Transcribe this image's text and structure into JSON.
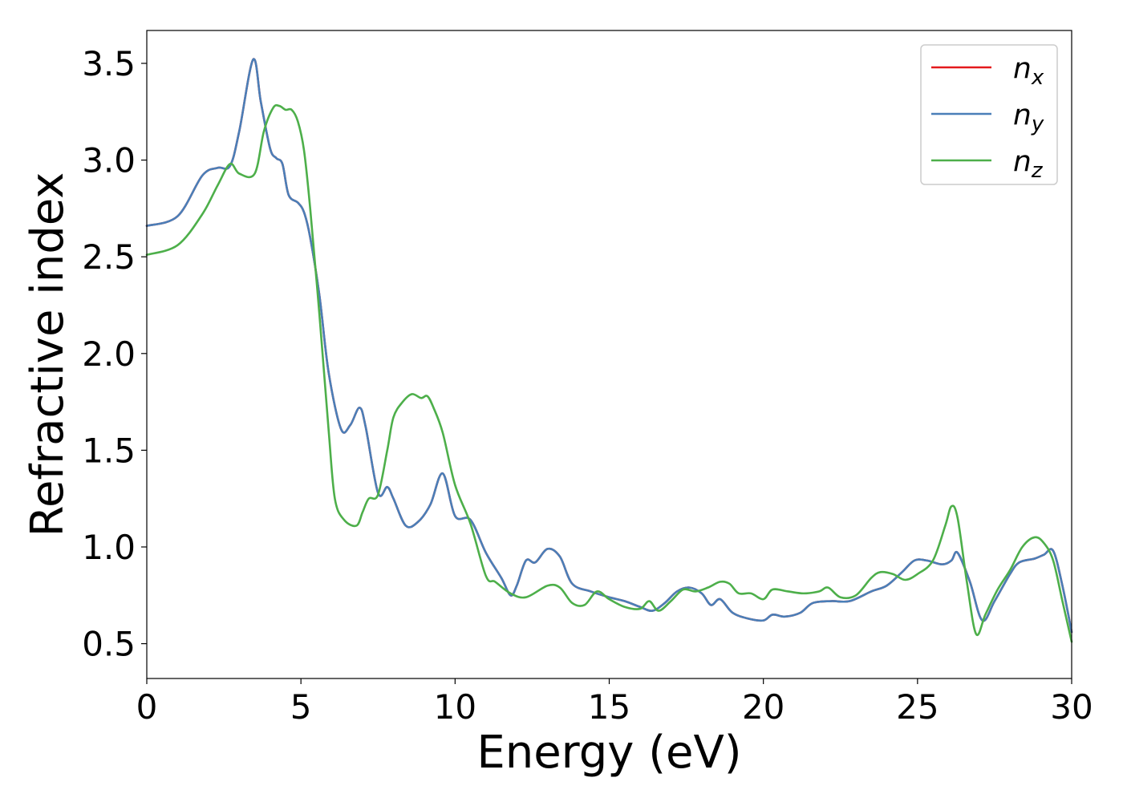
{
  "chart_data": {
    "type": "line",
    "title": "",
    "xlabel": "Energy (eV)",
    "ylabel": "Refractive index",
    "xlim": [
      0,
      30
    ],
    "ylim": [
      0.32,
      3.67
    ],
    "xticks": [
      0,
      5,
      10,
      15,
      20,
      25,
      30
    ],
    "yticks": [
      0.5,
      1.0,
      1.5,
      2.0,
      2.5,
      3.0,
      3.5
    ],
    "xtick_labels": [
      "0",
      "5",
      "10",
      "15",
      "20",
      "25",
      "30"
    ],
    "ytick_labels": [
      "0.5",
      "1.0",
      "1.5",
      "2.0",
      "2.5",
      "3.0",
      "3.5"
    ],
    "grid": false,
    "legend_position": "top-right",
    "series": [
      {
        "name": "n",
        "subscript": "x",
        "color": "#e41a1c",
        "x": [
          0,
          1.0,
          1.8,
          2.3,
          2.7,
          3.0,
          3.45,
          3.7,
          4.0,
          4.2,
          4.4,
          4.6,
          4.9,
          5.1,
          5.3,
          5.6,
          5.9,
          6.3,
          6.6,
          6.9,
          7.1,
          7.5,
          7.8,
          8.0,
          8.4,
          8.8,
          9.2,
          9.6,
          10.0,
          10.5,
          11.0,
          11.5,
          11.8,
          12.0,
          12.3,
          12.6,
          13.0,
          13.4,
          13.8,
          14.4,
          15.0,
          15.5,
          16.0,
          16.4,
          16.8,
          17.2,
          17.6,
          18.0,
          18.3,
          18.6,
          19.0,
          19.5,
          20.0,
          20.3,
          20.7,
          21.2,
          21.6,
          22.2,
          22.8,
          23.5,
          24.0,
          24.5,
          24.9,
          25.3,
          25.8,
          26.1,
          26.3,
          26.7,
          27.1,
          27.5,
          28.0,
          28.3,
          28.8,
          29.1,
          29.4,
          29.7,
          30.0
        ],
        "y": [
          2.66,
          2.71,
          2.92,
          2.96,
          2.97,
          3.15,
          3.52,
          3.3,
          3.06,
          3.01,
          2.98,
          2.82,
          2.78,
          2.73,
          2.6,
          2.3,
          1.9,
          1.61,
          1.63,
          1.72,
          1.62,
          1.28,
          1.31,
          1.25,
          1.11,
          1.13,
          1.22,
          1.38,
          1.16,
          1.14,
          0.97,
          0.84,
          0.75,
          0.8,
          0.93,
          0.92,
          0.99,
          0.95,
          0.81,
          0.77,
          0.74,
          0.72,
          0.69,
          0.67,
          0.71,
          0.77,
          0.79,
          0.76,
          0.7,
          0.73,
          0.66,
          0.63,
          0.62,
          0.65,
          0.64,
          0.66,
          0.71,
          0.72,
          0.72,
          0.77,
          0.8,
          0.87,
          0.93,
          0.93,
          0.91,
          0.93,
          0.97,
          0.82,
          0.62,
          0.72,
          0.86,
          0.92,
          0.94,
          0.96,
          0.98,
          0.8,
          0.56
        ]
      },
      {
        "name": "n",
        "subscript": "y",
        "color": "#4a7fb8",
        "x": [
          0,
          1.0,
          1.8,
          2.3,
          2.7,
          3.0,
          3.45,
          3.7,
          4.0,
          4.2,
          4.4,
          4.6,
          4.9,
          5.1,
          5.3,
          5.6,
          5.9,
          6.3,
          6.6,
          6.9,
          7.1,
          7.5,
          7.8,
          8.0,
          8.4,
          8.8,
          9.2,
          9.6,
          10.0,
          10.5,
          11.0,
          11.5,
          11.8,
          12.0,
          12.3,
          12.6,
          13.0,
          13.4,
          13.8,
          14.4,
          15.0,
          15.5,
          16.0,
          16.4,
          16.8,
          17.2,
          17.6,
          18.0,
          18.3,
          18.6,
          19.0,
          19.5,
          20.0,
          20.3,
          20.7,
          21.2,
          21.6,
          22.2,
          22.8,
          23.5,
          24.0,
          24.5,
          24.9,
          25.3,
          25.8,
          26.1,
          26.3,
          26.7,
          27.1,
          27.5,
          28.0,
          28.3,
          28.8,
          29.1,
          29.4,
          29.7,
          30.0
        ],
        "y": [
          2.66,
          2.71,
          2.92,
          2.96,
          2.97,
          3.15,
          3.52,
          3.3,
          3.06,
          3.01,
          2.98,
          2.82,
          2.78,
          2.73,
          2.6,
          2.3,
          1.9,
          1.61,
          1.63,
          1.72,
          1.62,
          1.28,
          1.31,
          1.25,
          1.11,
          1.13,
          1.22,
          1.38,
          1.16,
          1.14,
          0.97,
          0.84,
          0.75,
          0.8,
          0.93,
          0.92,
          0.99,
          0.95,
          0.81,
          0.77,
          0.74,
          0.72,
          0.69,
          0.67,
          0.71,
          0.77,
          0.79,
          0.76,
          0.7,
          0.73,
          0.66,
          0.63,
          0.62,
          0.65,
          0.64,
          0.66,
          0.71,
          0.72,
          0.72,
          0.77,
          0.8,
          0.87,
          0.93,
          0.93,
          0.91,
          0.93,
          0.97,
          0.82,
          0.62,
          0.72,
          0.86,
          0.92,
          0.94,
          0.96,
          0.98,
          0.8,
          0.56
        ]
      },
      {
        "name": "n",
        "subscript": "z",
        "color": "#4daf4a",
        "x": [
          0,
          1.0,
          1.8,
          2.3,
          2.7,
          3.0,
          3.5,
          3.8,
          4.1,
          4.3,
          4.5,
          4.7,
          4.9,
          5.1,
          5.3,
          5.6,
          5.9,
          6.1,
          6.4,
          6.8,
          7.0,
          7.2,
          7.5,
          7.8,
          8.0,
          8.3,
          8.6,
          8.9,
          9.1,
          9.3,
          9.6,
          10.0,
          10.5,
          11.0,
          11.3,
          11.8,
          12.3,
          13.0,
          13.4,
          13.8,
          14.2,
          14.6,
          15.0,
          15.5,
          16.0,
          16.3,
          16.6,
          17.0,
          17.4,
          17.8,
          18.2,
          18.6,
          18.9,
          19.2,
          19.6,
          20.0,
          20.3,
          20.8,
          21.3,
          21.8,
          22.1,
          22.5,
          23.0,
          23.5,
          23.8,
          24.2,
          24.6,
          25.0,
          25.5,
          25.9,
          26.1,
          26.3,
          26.6,
          26.9,
          27.2,
          27.6,
          28.0,
          28.4,
          28.8,
          29.1,
          29.4,
          29.7,
          30.0
        ],
        "y": [
          2.51,
          2.56,
          2.72,
          2.87,
          2.98,
          2.93,
          2.93,
          3.15,
          3.27,
          3.28,
          3.26,
          3.26,
          3.2,
          3.05,
          2.75,
          2.2,
          1.6,
          1.25,
          1.14,
          1.11,
          1.18,
          1.25,
          1.27,
          1.5,
          1.67,
          1.75,
          1.79,
          1.77,
          1.78,
          1.72,
          1.59,
          1.32,
          1.12,
          0.85,
          0.82,
          0.76,
          0.74,
          0.8,
          0.79,
          0.71,
          0.7,
          0.77,
          0.73,
          0.69,
          0.68,
          0.72,
          0.67,
          0.72,
          0.78,
          0.77,
          0.79,
          0.82,
          0.81,
          0.76,
          0.76,
          0.73,
          0.78,
          0.77,
          0.76,
          0.77,
          0.79,
          0.74,
          0.75,
          0.84,
          0.87,
          0.86,
          0.83,
          0.86,
          0.93,
          1.11,
          1.21,
          1.15,
          0.82,
          0.55,
          0.65,
          0.78,
          0.88,
          1.0,
          1.05,
          1.02,
          0.93,
          0.72,
          0.51
        ]
      }
    ]
  }
}
